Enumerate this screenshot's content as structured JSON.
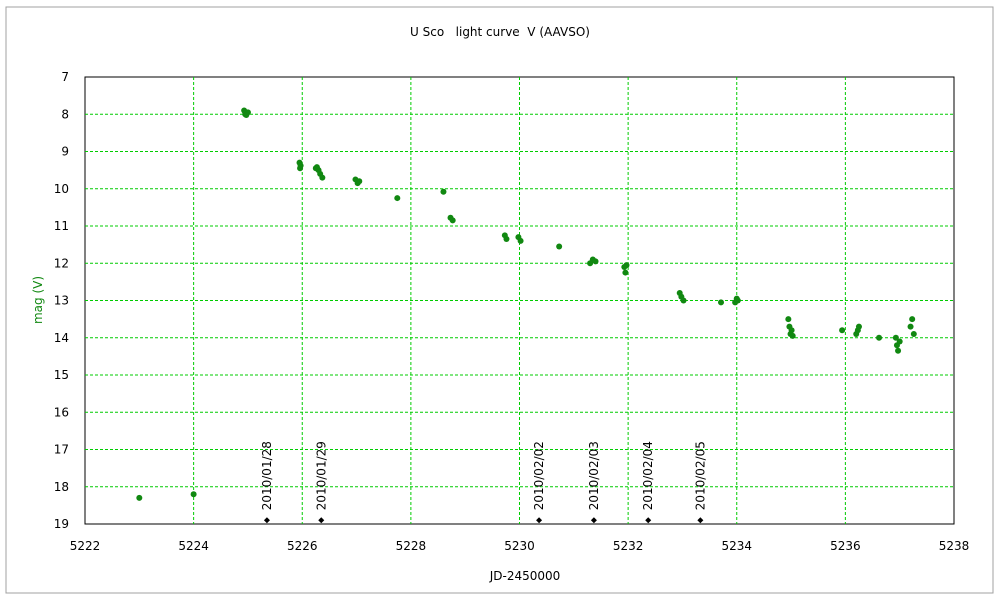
{
  "chart_data": {
    "type": "scatter",
    "title": "U Sco   light curve  V (AAVSO)",
    "x_label": "JD-2450000",
    "y_label": "mag (V)",
    "color": "#118811",
    "grid": true,
    "y_inverted": true,
    "xlim": [
      5222,
      5238
    ],
    "xticks": [
      5222,
      5224,
      5226,
      5228,
      5230,
      5232,
      5234,
      5236,
      5238
    ],
    "ylim": [
      19,
      7
    ],
    "yticks": [
      7,
      8,
      9,
      10,
      11,
      12,
      13,
      14,
      15,
      16,
      17,
      18,
      19
    ],
    "x": [
      5223.0,
      5224.0,
      5224.93,
      5224.95,
      5225.0,
      5224.97,
      5225.95,
      5225.96,
      5225.97,
      5226.27,
      5226.3,
      5226.33,
      5226.37,
      5226.25,
      5226.98,
      5227.02,
      5227.05,
      5227.75,
      5228.6,
      5228.73,
      5228.77,
      5229.73,
      5229.76,
      5229.98,
      5230.02,
      5230.73,
      5231.3,
      5231.35,
      5231.4,
      5231.93,
      5231.95,
      5231.97,
      5232.95,
      5232.98,
      5233.02,
      5233.71,
      5233.97,
      5234.0,
      5234.02,
      5234.95,
      5234.97,
      5234.99,
      5235.01,
      5235.03,
      5235.94,
      5236.2,
      5236.23,
      5236.25,
      5236.62,
      5236.93,
      5236.95,
      5236.97,
      5237.0,
      5237.2,
      5237.23,
      5237.26
    ],
    "y": [
      18.3,
      18.2,
      7.9,
      8.0,
      7.95,
      8.02,
      9.3,
      9.45,
      9.38,
      9.42,
      9.5,
      9.6,
      9.7,
      9.45,
      9.75,
      9.85,
      9.8,
      10.25,
      10.08,
      10.78,
      10.85,
      11.25,
      11.35,
      11.3,
      11.4,
      11.55,
      12.0,
      11.9,
      11.95,
      12.1,
      12.25,
      12.05,
      12.8,
      12.9,
      13.0,
      13.05,
      13.05,
      12.95,
      13.0,
      13.5,
      13.7,
      13.9,
      13.8,
      13.95,
      13.8,
      13.9,
      13.8,
      13.7,
      14.0,
      14.0,
      14.2,
      14.35,
      14.1,
      13.7,
      13.5,
      13.9
    ],
    "annotations": [
      {
        "x": 5225.35,
        "y": 18.9,
        "label": "2010/01/28"
      },
      {
        "x": 5226.35,
        "y": 18.9,
        "label": "2010/01/29"
      },
      {
        "x": 5230.36,
        "y": 18.9,
        "label": "2010/02/02"
      },
      {
        "x": 5231.37,
        "y": 18.9,
        "label": "2010/02/03"
      },
      {
        "x": 5232.37,
        "y": 18.9,
        "label": "2010/02/04"
      },
      {
        "x": 5233.33,
        "y": 18.9,
        "label": "2010/02/05"
      }
    ]
  }
}
